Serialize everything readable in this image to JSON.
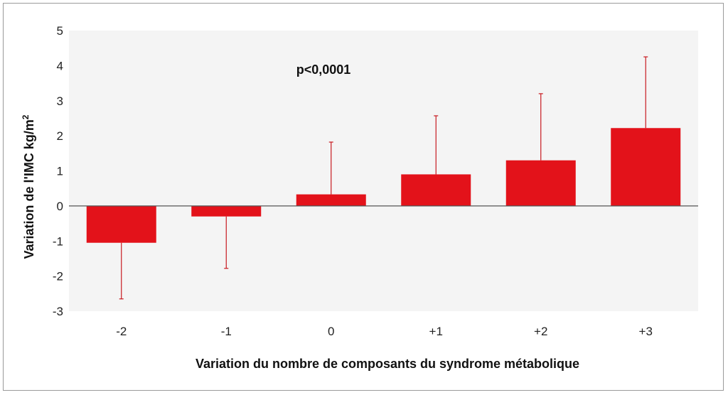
{
  "chart_data": {
    "type": "bar",
    "title": "",
    "xlabel": "Variation du nombre de composants du syndrome métabolique",
    "ylabel": "Variation de l'IMC kg/m",
    "ylabel_superscript": "2",
    "annotation": "p<0,0001",
    "categories": [
      "-2",
      "-1",
      "0",
      "+1",
      "+2",
      "+3"
    ],
    "values": [
      -1.05,
      -0.3,
      0.33,
      0.9,
      1.3,
      2.22
    ],
    "error_upper": [
      -2.65,
      -1.78,
      1.82,
      2.57,
      3.2,
      4.25
    ],
    "ylim": [
      -3,
      5
    ],
    "yticks": [
      "5",
      "4",
      "3",
      "2",
      "1",
      "0",
      "-1",
      "-2",
      "-3"
    ],
    "ytick_values": [
      5,
      4,
      3,
      2,
      1,
      0,
      -1,
      -2,
      -3
    ],
    "grid": false,
    "legend": "none",
    "colors": {
      "bar": "#e3121a",
      "error": "#c8191f",
      "plot_bg": "#f4f4f4",
      "axis": "#555555"
    }
  }
}
